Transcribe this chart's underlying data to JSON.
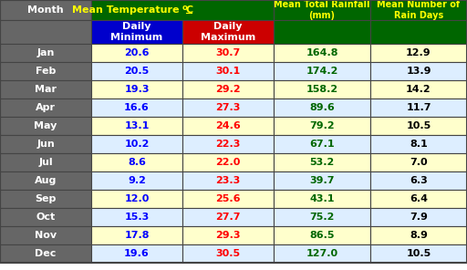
{
  "months": [
    "Jan",
    "Feb",
    "Mar",
    "Apr",
    "May",
    "Jun",
    "Jul",
    "Aug",
    "Sep",
    "Oct",
    "Nov",
    "Dec"
  ],
  "daily_min": [
    20.6,
    20.5,
    19.3,
    16.6,
    13.1,
    10.2,
    8.6,
    9.2,
    12.0,
    15.3,
    17.8,
    19.6
  ],
  "daily_max": [
    30.7,
    30.1,
    29.2,
    27.3,
    24.6,
    22.3,
    22.0,
    23.3,
    25.6,
    27.7,
    29.3,
    30.5
  ],
  "rainfall": [
    164.8,
    174.2,
    158.2,
    89.6,
    79.2,
    67.1,
    53.2,
    39.7,
    43.1,
    75.2,
    86.5,
    127.0
  ],
  "rain_days": [
    12.9,
    13.9,
    14.2,
    11.7,
    10.5,
    8.1,
    7.0,
    6.3,
    6.4,
    7.9,
    8.9,
    10.5
  ],
  "header_bg": "#006600",
  "subheader_min_bg": "#0000CC",
  "subheader_max_bg": "#CC0000",
  "row_bg_odd": "#FFFFCC",
  "row_bg_even": "#DDEEFF",
  "month_col_bg": "#666666",
  "month_text_color": "#FFFFFF",
  "min_text_color": "#0000FF",
  "max_text_color": "#FF0000",
  "rainfall_text_color": "#006600",
  "raindays_text_color": "#000000",
  "header_text_color": "#FFFF00",
  "border_color": "#444444"
}
